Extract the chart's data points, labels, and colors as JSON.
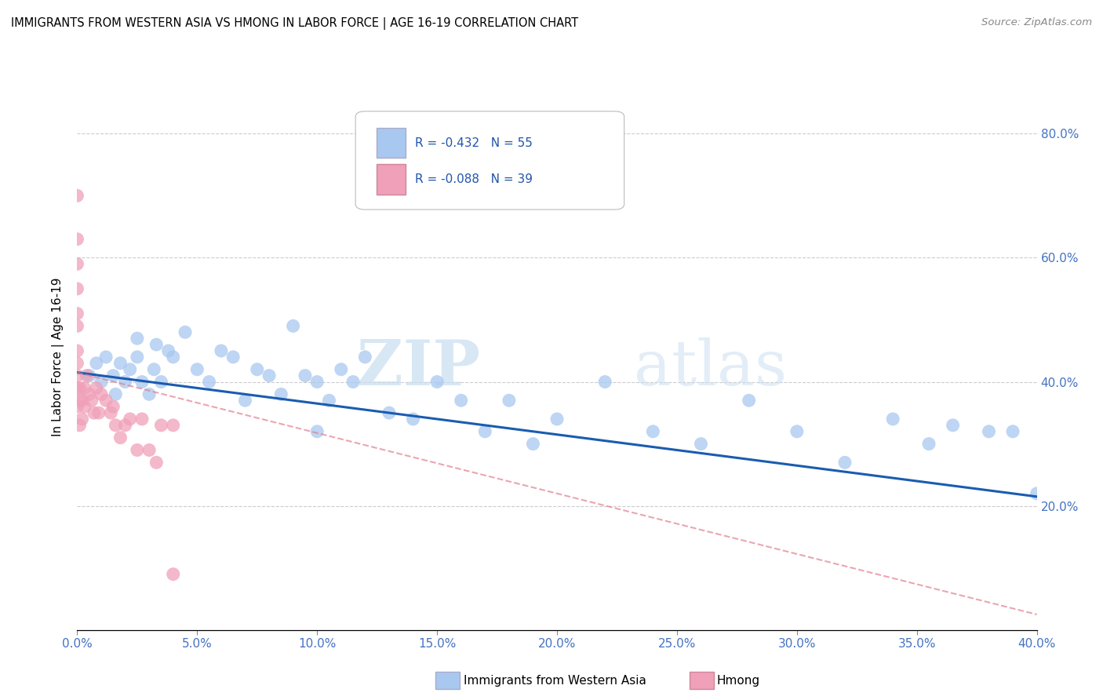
{
  "title": "IMMIGRANTS FROM WESTERN ASIA VS HMONG IN LABOR FORCE | AGE 16-19 CORRELATION CHART",
  "source": "Source: ZipAtlas.com",
  "ylabel_label": "In Labor Force | Age 16-19",
  "xlim": [
    0.0,
    0.4
  ],
  "ylim": [
    0.0,
    0.88
  ],
  "xtick_labels": [
    "0.0%",
    "5.0%",
    "10.0%",
    "15.0%",
    "20.0%",
    "25.0%",
    "30.0%",
    "35.0%",
    "40.0%"
  ],
  "xtick_vals": [
    0.0,
    0.05,
    0.1,
    0.15,
    0.2,
    0.25,
    0.3,
    0.35,
    0.4
  ],
  "ytick_labels": [
    "20.0%",
    "40.0%",
    "60.0%",
    "80.0%"
  ],
  "ytick_vals": [
    0.2,
    0.4,
    0.6,
    0.8
  ],
  "legend_r_blue": "R = -0.432",
  "legend_n_blue": "N = 55",
  "legend_r_pink": "R = -0.088",
  "legend_n_pink": "N = 39",
  "blue_color": "#a8c8f0",
  "pink_color": "#f0a0b8",
  "blue_line_color": "#1a5cb0",
  "pink_line_color": "#e08090",
  "watermark_zip": "ZIP",
  "watermark_atlas": "atlas",
  "blue_scatter_x": [
    0.005,
    0.008,
    0.01,
    0.012,
    0.015,
    0.016,
    0.018,
    0.02,
    0.022,
    0.025,
    0.025,
    0.027,
    0.03,
    0.032,
    0.033,
    0.035,
    0.038,
    0.04,
    0.045,
    0.05,
    0.055,
    0.06,
    0.065,
    0.07,
    0.075,
    0.08,
    0.085,
    0.09,
    0.095,
    0.1,
    0.1,
    0.105,
    0.11,
    0.115,
    0.12,
    0.13,
    0.14,
    0.15,
    0.16,
    0.17,
    0.18,
    0.19,
    0.2,
    0.22,
    0.24,
    0.26,
    0.28,
    0.3,
    0.32,
    0.34,
    0.355,
    0.365,
    0.38,
    0.39,
    0.4
  ],
  "blue_scatter_y": [
    0.41,
    0.43,
    0.4,
    0.44,
    0.41,
    0.38,
    0.43,
    0.4,
    0.42,
    0.44,
    0.47,
    0.4,
    0.38,
    0.42,
    0.46,
    0.4,
    0.45,
    0.44,
    0.48,
    0.42,
    0.4,
    0.45,
    0.44,
    0.37,
    0.42,
    0.41,
    0.38,
    0.49,
    0.41,
    0.4,
    0.32,
    0.37,
    0.42,
    0.4,
    0.44,
    0.35,
    0.34,
    0.4,
    0.37,
    0.32,
    0.37,
    0.3,
    0.34,
    0.4,
    0.32,
    0.3,
    0.37,
    0.32,
    0.27,
    0.34,
    0.3,
    0.33,
    0.32,
    0.32,
    0.22
  ],
  "pink_scatter_x": [
    0.0,
    0.0,
    0.0,
    0.0,
    0.0,
    0.0,
    0.0,
    0.0,
    0.0,
    0.0,
    0.0,
    0.001,
    0.001,
    0.001,
    0.002,
    0.002,
    0.003,
    0.003,
    0.004,
    0.005,
    0.006,
    0.007,
    0.008,
    0.009,
    0.01,
    0.012,
    0.014,
    0.015,
    0.016,
    0.018,
    0.02,
    0.022,
    0.025,
    0.027,
    0.03,
    0.033,
    0.035,
    0.04,
    0.04
  ],
  "pink_scatter_y": [
    0.7,
    0.63,
    0.59,
    0.55,
    0.51,
    0.49,
    0.45,
    0.43,
    0.41,
    0.39,
    0.36,
    0.37,
    0.39,
    0.33,
    0.37,
    0.34,
    0.39,
    0.36,
    0.41,
    0.38,
    0.37,
    0.35,
    0.39,
    0.35,
    0.38,
    0.37,
    0.35,
    0.36,
    0.33,
    0.31,
    0.33,
    0.34,
    0.29,
    0.34,
    0.29,
    0.27,
    0.33,
    0.09,
    0.33
  ],
  "blue_trend_x": [
    0.0,
    0.4
  ],
  "blue_trend_y": [
    0.415,
    0.215
  ],
  "pink_trend_x": [
    0.0,
    0.4
  ],
  "pink_trend_y": [
    0.415,
    0.025
  ]
}
